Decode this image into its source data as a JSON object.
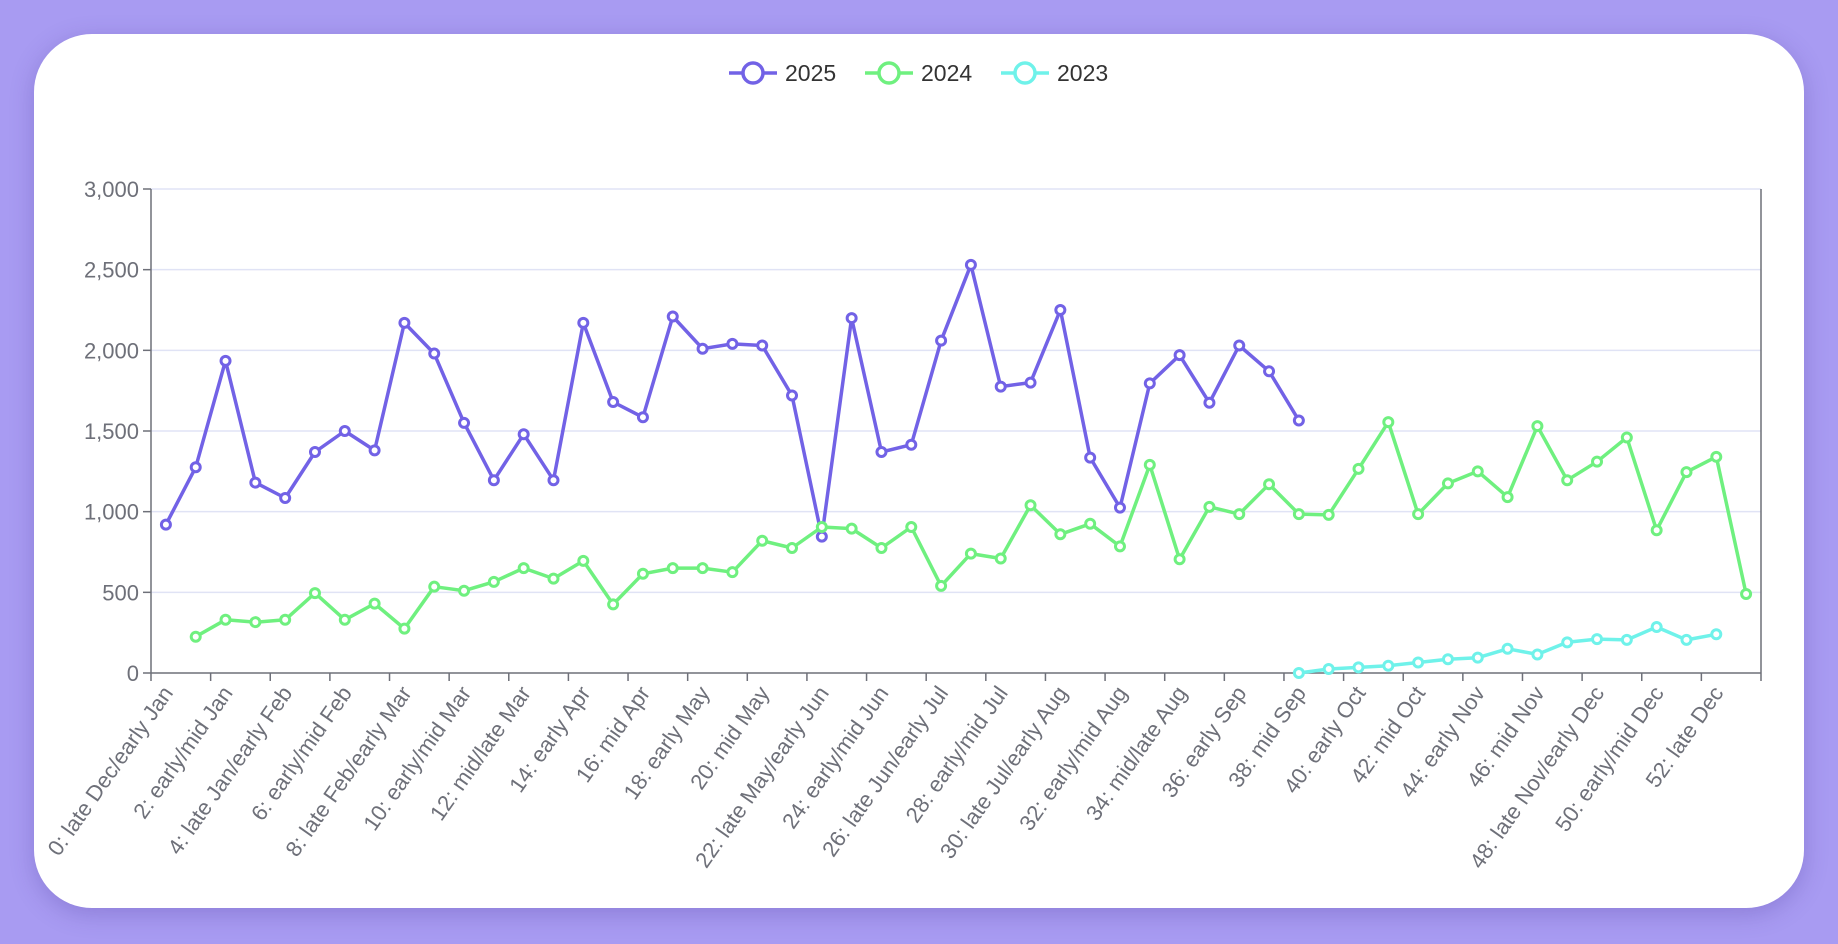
{
  "colors": {
    "2025": "#7262e6",
    "2024": "#6ff07f",
    "2023": "#6ff2ea",
    "grid": "#e0e3f5",
    "axis": "#6e7079"
  },
  "chart_data": {
    "type": "line",
    "title": "",
    "xlabel": "",
    "ylabel": "",
    "ylim": [
      0,
      3000
    ],
    "yticks": [
      0,
      500,
      1000,
      1500,
      2000,
      2500,
      3000
    ],
    "ytick_labels": [
      "0",
      "500",
      "1,000",
      "1,500",
      "2,000",
      "2,500",
      "3,000"
    ],
    "legend_position": "top-center",
    "grid": true,
    "x_tick_labels": [
      "0: late Dec/early Jan",
      "2: early/mid Jan",
      "4: late Jan/early Feb",
      "6: early/mid Feb",
      "8: late Feb/early Mar",
      "10: early/mid Mar",
      "12: mid/late Mar",
      "14: early Apr",
      "16: mid Apr",
      "18: early May",
      "20: mid May",
      "22: late May/early Jun",
      "24: early/mid Jun",
      "26: late Jun/early Jul",
      "28: early/mid Jul",
      "30: late Jul/early Aug",
      "32: early/mid Aug",
      "34: mid/late Aug",
      "36: early Sep",
      "38: mid Sep",
      "40: early Oct",
      "42: mid Oct",
      "44: early Nov",
      "46: mid Nov",
      "48: late Nov/early Dec",
      "50: early/mid Dec",
      "52: late Dec"
    ],
    "x_weeks": [
      0,
      1,
      2,
      3,
      4,
      5,
      6,
      7,
      8,
      9,
      10,
      11,
      12,
      13,
      14,
      15,
      16,
      17,
      18,
      19,
      20,
      21,
      22,
      23,
      24,
      25,
      26,
      27,
      28,
      29,
      30,
      31,
      32,
      33,
      34,
      35,
      36,
      37,
      38,
      39,
      40,
      41,
      42,
      43,
      44,
      45,
      46,
      47,
      48,
      49,
      50,
      51,
      52,
      53
    ],
    "series": [
      {
        "name": "2025",
        "values": [
          920,
          1275,
          1935,
          1180,
          1085,
          1370,
          1500,
          1380,
          2170,
          1980,
          1550,
          1195,
          1480,
          1195,
          2170,
          1680,
          1585,
          2210,
          2010,
          2040,
          2030,
          1720,
          845,
          2200,
          1370,
          1415,
          2060,
          2530,
          1775,
          1800,
          2250,
          1335,
          1025,
          1795,
          1970,
          1675,
          2030,
          1870,
          1565,
          null,
          null,
          null,
          null,
          null,
          null,
          null,
          null,
          null,
          null,
          null,
          null,
          null,
          null,
          null
        ]
      },
      {
        "name": "2024",
        "values": [
          null,
          225,
          330,
          315,
          330,
          495,
          330,
          430,
          275,
          535,
          510,
          565,
          650,
          585,
          695,
          425,
          615,
          650,
          650,
          625,
          820,
          775,
          905,
          895,
          775,
          905,
          540,
          740,
          710,
          1040,
          860,
          925,
          785,
          1290,
          705,
          1030,
          985,
          1170,
          985,
          980,
          1265,
          1555,
          985,
          1175,
          1250,
          1090,
          1530,
          1195,
          1310,
          1460,
          885,
          1245,
          1340,
          490
        ]
      },
      {
        "name": "2023",
        "values": [
          null,
          null,
          null,
          null,
          null,
          null,
          null,
          null,
          null,
          null,
          null,
          null,
          null,
          null,
          null,
          null,
          null,
          null,
          null,
          null,
          null,
          null,
          null,
          null,
          null,
          null,
          null,
          null,
          null,
          null,
          null,
          null,
          null,
          null,
          null,
          null,
          null,
          null,
          0,
          25,
          35,
          45,
          65,
          85,
          95,
          150,
          115,
          190,
          210,
          205,
          285,
          205,
          240,
          null
        ]
      }
    ]
  }
}
